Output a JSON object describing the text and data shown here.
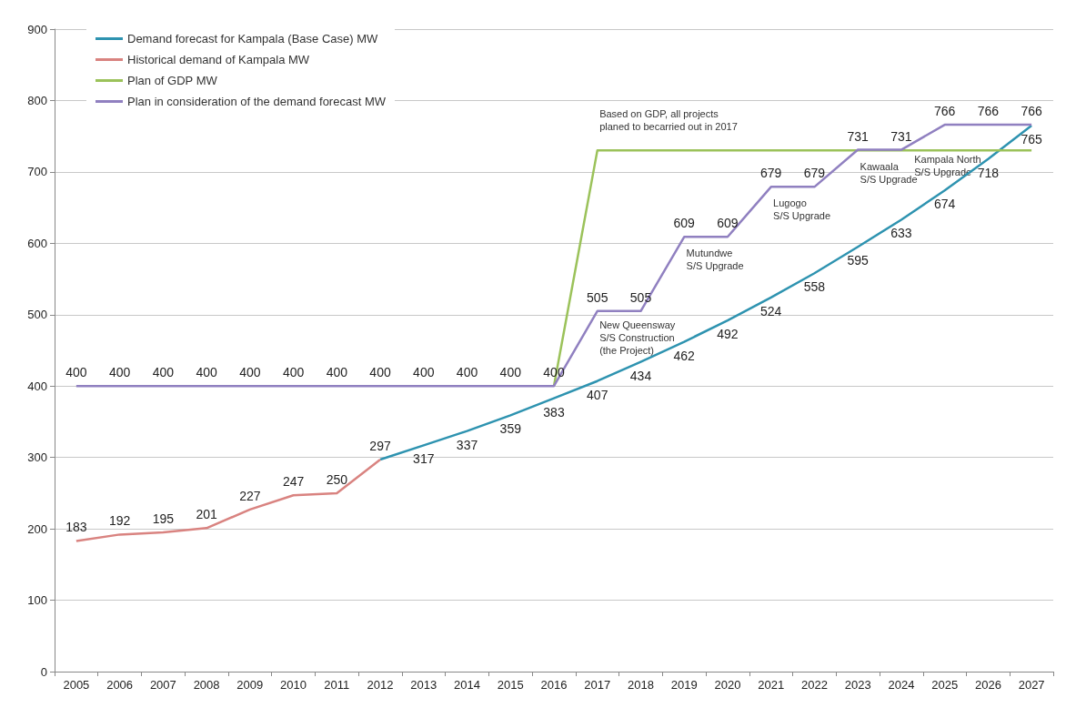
{
  "chart_data": {
    "type": "line",
    "categories": [
      "2005",
      "2006",
      "2007",
      "2008",
      "2009",
      "2010",
      "2011",
      "2012",
      "2013",
      "2014",
      "2015",
      "2016",
      "2017",
      "2018",
      "2019",
      "2020",
      "2021",
      "2022",
      "2023",
      "2024",
      "2025",
      "2026",
      "2027"
    ],
    "ylim": [
      0,
      900
    ],
    "yticks": [
      0,
      100,
      200,
      300,
      400,
      500,
      600,
      700,
      800,
      900
    ],
    "grid": "y",
    "legend": "top left",
    "marker": "none",
    "series": [
      {
        "name": "Demand forecast for Kampala (Base Case) MW",
        "color": "#2e93b0",
        "values": [
          null,
          null,
          null,
          null,
          null,
          null,
          null,
          297,
          317,
          337,
          359,
          383,
          407,
          434,
          462,
          492,
          524,
          558,
          595,
          633,
          674,
          718,
          765
        ],
        "value_labels": [
          null,
          null,
          null,
          null,
          null,
          null,
          null,
          null,
          "317",
          "337",
          "359",
          "383",
          "407",
          "434",
          "462",
          "492",
          "524",
          "558",
          "595",
          "633",
          "674",
          "718",
          "765"
        ]
      },
      {
        "name": "Historical demand of Kampala MW",
        "color": "#d98380",
        "values": [
          183,
          192,
          195,
          201,
          227,
          247,
          250,
          297,
          null,
          null,
          null,
          null,
          null,
          null,
          null,
          null,
          null,
          null,
          null,
          null,
          null,
          null,
          null
        ],
        "value_labels": [
          "183",
          "192",
          "195",
          "201",
          "227",
          "247",
          "250",
          "297",
          null,
          null,
          null,
          null,
          null,
          null,
          null,
          null,
          null,
          null,
          null,
          null,
          null,
          null,
          null
        ]
      },
      {
        "name": "Plan of GDP MW",
        "color": "#9bc25a",
        "values": [
          null,
          null,
          null,
          null,
          null,
          null,
          null,
          null,
          null,
          null,
          null,
          400,
          730,
          730,
          730,
          730,
          730,
          730,
          730,
          730,
          730,
          730,
          730
        ]
      },
      {
        "name": "Plan in consideration of the demand forecast MW",
        "color": "#9080c0",
        "values": [
          400,
          400,
          400,
          400,
          400,
          400,
          400,
          400,
          400,
          400,
          400,
          400,
          505,
          505,
          609,
          609,
          679,
          679,
          731,
          731,
          766,
          766,
          766
        ],
        "value_labels": [
          "400",
          "400",
          "400",
          "400",
          "400",
          "400",
          "400",
          "400",
          "400",
          "400",
          "400",
          "400",
          "505",
          "505",
          "609",
          "609",
          "679",
          "679",
          "731",
          "731",
          "766",
          "766",
          "766"
        ]
      }
    ],
    "annotations": [
      "Based on GDP, all projects\nplaned to becarried out in 2017",
      "New Queensway\nS/S Construction\n(the Project)",
      "Mutundwe\nS/S Upgrade",
      "Lugogo\nS/S Upgrade",
      "Kawaala\nS/S Upgrade",
      "Kampala North\nS/S Upgrade"
    ]
  }
}
